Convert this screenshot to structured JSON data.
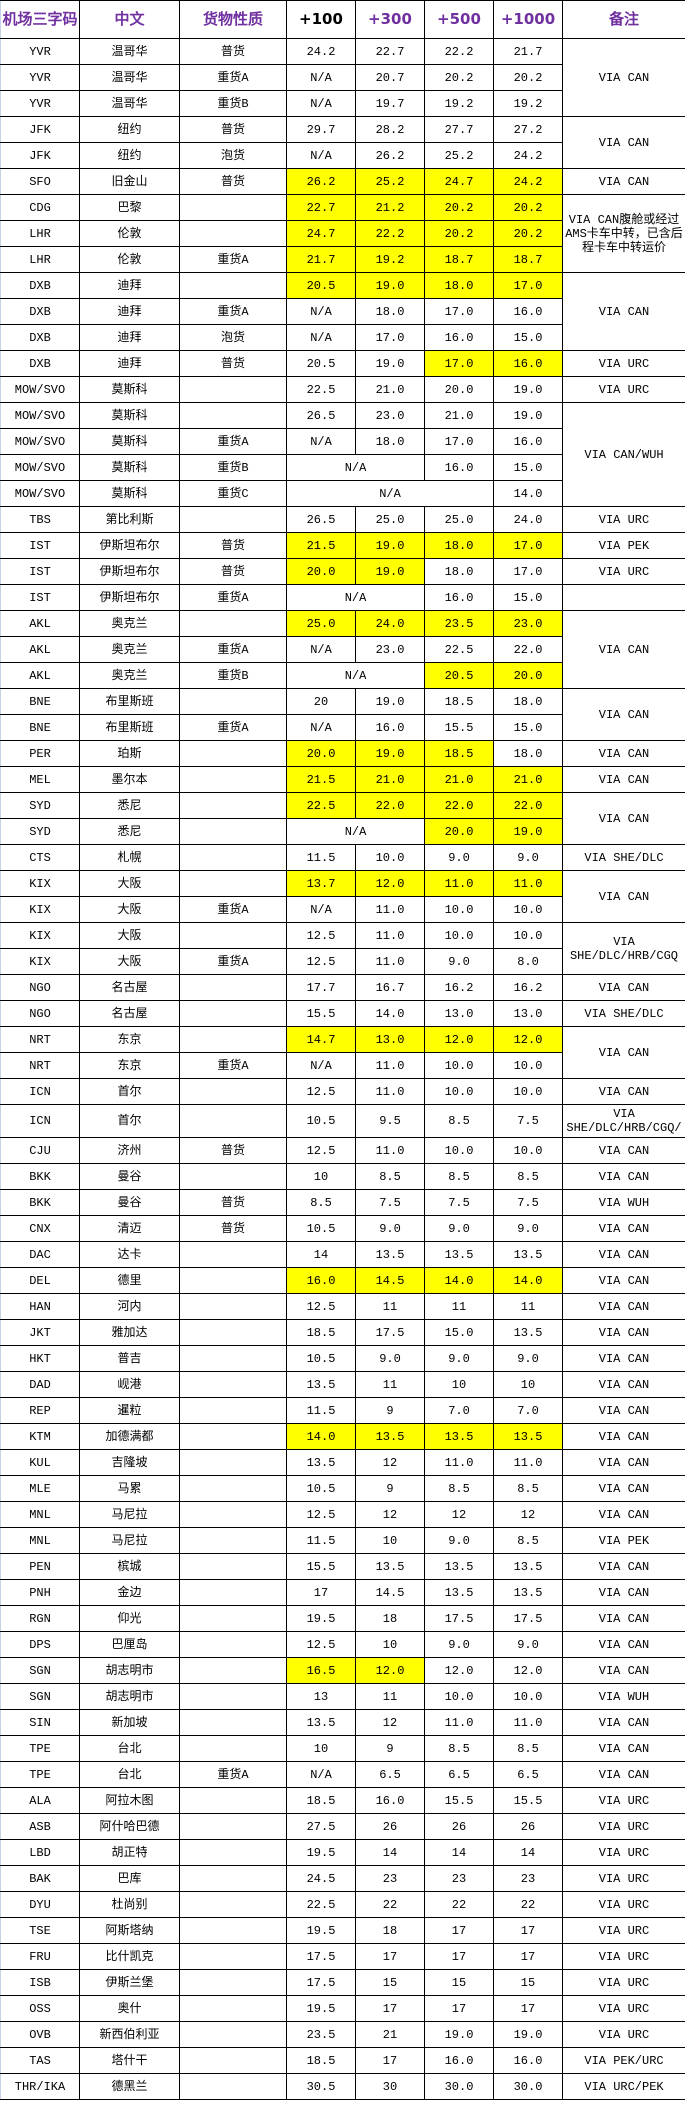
{
  "colors": {
    "header_text": "#7030A0",
    "highlight": "#ffff00"
  },
  "headers": [
    "机场三字码",
    "中文",
    "货物性质",
    "+100",
    "+300",
    "+500",
    "+1000",
    "备注"
  ],
  "rows": [
    {
      "code": "YVR",
      "city": "温哥华",
      "type": "普货",
      "p": [
        "24.2",
        "22.7",
        "22.2",
        "21.7"
      ],
      "hl": [],
      "note": "VIA CAN",
      "note_rows": 3
    },
    {
      "code": "YVR",
      "city": "温哥华",
      "type": "重货A",
      "p": [
        "N/A",
        "20.7",
        "20.2",
        "20.2"
      ],
      "hl": []
    },
    {
      "code": "YVR",
      "city": "温哥华",
      "type": "重货B",
      "p": [
        "N/A",
        "19.7",
        "19.2",
        "19.2"
      ],
      "hl": []
    },
    {
      "code": "JFK",
      "city": "纽约",
      "type": "普货",
      "p": [
        "29.7",
        "28.2",
        "27.7",
        "27.2"
      ],
      "hl": [],
      "note": "VIA CAN",
      "note_rows": 2
    },
    {
      "code": "JFK",
      "city": "纽约",
      "type": "泡货",
      "p": [
        "N/A",
        "26.2",
        "25.2",
        "24.2"
      ],
      "hl": []
    },
    {
      "code": "SFO",
      "city": "旧金山",
      "type": "普货",
      "p": [
        "26.2",
        "25.2",
        "24.7",
        "24.2"
      ],
      "hl": [
        0,
        1,
        2,
        3
      ],
      "note": "VIA CAN",
      "note_rows": 1
    },
    {
      "code": "CDG",
      "city": "巴黎",
      "type": "",
      "p": [
        "22.7",
        "21.2",
        "20.2",
        "20.2"
      ],
      "hl": [
        0,
        1,
        2,
        3
      ],
      "note": "VIA CAN腹舱或经过AMS卡车中转，已含后程卡车中转运价",
      "note_rows": 3
    },
    {
      "code": "LHR",
      "city": "伦敦",
      "type": "",
      "p": [
        "24.7",
        "22.2",
        "20.2",
        "20.2"
      ],
      "hl": [
        0,
        1,
        2,
        3
      ]
    },
    {
      "code": "LHR",
      "city": "伦敦",
      "type": "重货A",
      "p": [
        "21.7",
        "19.2",
        "18.7",
        "18.7"
      ],
      "hl": [
        0,
        1,
        2,
        3
      ]
    },
    {
      "code": "DXB",
      "city": "迪拜",
      "type": "",
      "p": [
        "20.5",
        "19.0",
        "18.0",
        "17.0"
      ],
      "hl": [
        0,
        1,
        2,
        3
      ],
      "note": "VIA CAN",
      "note_rows": 3
    },
    {
      "code": "DXB",
      "city": "迪拜",
      "type": "重货A",
      "p": [
        "N/A",
        "18.0",
        "17.0",
        "16.0"
      ],
      "hl": []
    },
    {
      "code": "DXB",
      "city": "迪拜",
      "type": "泡货",
      "p": [
        "N/A",
        "17.0",
        "16.0",
        "15.0"
      ],
      "hl": []
    },
    {
      "code": "DXB",
      "city": "迪拜",
      "type": "普货",
      "p": [
        "20.5",
        "19.0",
        "17.0",
        "16.0"
      ],
      "hl": [
        2,
        3
      ],
      "note": "VIA URC",
      "note_rows": 1
    },
    {
      "code": "MOW/SVO",
      "city": "莫斯科",
      "type": "",
      "p": [
        "22.5",
        "21.0",
        "20.0",
        "19.0"
      ],
      "hl": [],
      "note": "VIA URC",
      "note_rows": 1
    },
    {
      "code": "MOW/SVO",
      "city": "莫斯科",
      "type": "",
      "p": [
        "26.5",
        "23.0",
        "21.0",
        "19.0"
      ],
      "hl": [],
      "note": "VIA CAN/WUH",
      "note_rows": 4
    },
    {
      "code": "MOW/SVO",
      "city": "莫斯科",
      "type": "重货A",
      "p": [
        "N/A",
        "18.0",
        "17.0",
        "16.0"
      ],
      "hl": []
    },
    {
      "code": "MOW/SVO",
      "city": "莫斯科",
      "type": "重货B",
      "p": [
        [
          "N/A",
          2
        ],
        "16.0",
        "15.0"
      ],
      "hl": []
    },
    {
      "code": "MOW/SVO",
      "city": "莫斯科",
      "type": "重货C",
      "p": [
        [
          "N/A",
          3
        ],
        "14.0"
      ],
      "hl": []
    },
    {
      "code": "TBS",
      "city": "第比利斯",
      "type": "",
      "p": [
        "26.5",
        "25.0",
        "25.0",
        "24.0"
      ],
      "hl": [],
      "note": "VIA URC",
      "note_rows": 1
    },
    {
      "code": "IST",
      "city": "伊斯坦布尔",
      "type": "普货",
      "p": [
        "21.5",
        "19.0",
        "18.0",
        "17.0"
      ],
      "hl": [
        0,
        1,
        2,
        3
      ],
      "note": "VIA PEK",
      "note_rows": 1
    },
    {
      "code": "IST",
      "city": "伊斯坦布尔",
      "type": "普货",
      "p": [
        "20.0",
        "19.0",
        "18.0",
        "17.0"
      ],
      "hl": [
        0,
        1
      ],
      "note": "VIA URC",
      "note_rows": 1
    },
    {
      "code": "IST",
      "city": "伊斯坦布尔",
      "type": "重货A",
      "p": [
        [
          "N/A",
          2
        ],
        "16.0",
        "15.0"
      ],
      "hl": [],
      "note": "",
      "note_rows": 1
    },
    {
      "code": "AKL",
      "city": "奥克兰",
      "type": "",
      "p": [
        "25.0",
        "24.0",
        "23.5",
        "23.0"
      ],
      "hl": [
        0,
        1,
        2,
        3
      ],
      "note": "VIA CAN",
      "note_rows": 3
    },
    {
      "code": "AKL",
      "city": "奥克兰",
      "type": "重货A",
      "p": [
        "N/A",
        "23.0",
        "22.5",
        "22.0"
      ],
      "hl": []
    },
    {
      "code": "AKL",
      "city": "奥克兰",
      "type": "重货B",
      "p": [
        [
          "N/A",
          2
        ],
        "20.5",
        "20.0"
      ],
      "hl": [
        1,
        2
      ]
    },
    {
      "code": "BNE",
      "city": "布里斯班",
      "type": "",
      "p": [
        "20",
        "19.0",
        "18.5",
        "18.0"
      ],
      "hl": [],
      "note": "VIA CAN",
      "note_rows": 2
    },
    {
      "code": "BNE",
      "city": "布里斯班",
      "type": "重货A",
      "p": [
        "N/A",
        "16.0",
        "15.5",
        "15.0"
      ],
      "hl": []
    },
    {
      "code": "PER",
      "city": "珀斯",
      "type": "",
      "p": [
        "20.0",
        "19.0",
        "18.5",
        "18.0"
      ],
      "hl": [
        0,
        1,
        2
      ],
      "note": "VIA CAN",
      "note_rows": 1
    },
    {
      "code": "MEL",
      "city": "墨尔本",
      "type": "",
      "p": [
        "21.5",
        "21.0",
        "21.0",
        "21.0"
      ],
      "hl": [
        0,
        1,
        2,
        3
      ],
      "note": "VIA CAN",
      "note_rows": 1
    },
    {
      "code": "SYD",
      "city": "悉尼",
      "type": "",
      "p": [
        "22.5",
        "22.0",
        "22.0",
        "22.0"
      ],
      "hl": [
        0,
        1,
        2,
        3
      ],
      "note": "VIA CAN",
      "note_rows": 2
    },
    {
      "code": "SYD",
      "city": "悉尼",
      "type": "",
      "p": [
        [
          "N/A",
          2
        ],
        "20.0",
        "19.0"
      ],
      "hl": [
        1,
        2
      ]
    },
    {
      "code": "CTS",
      "city": "札幌",
      "type": "",
      "p": [
        "11.5",
        "10.0",
        "9.0",
        "9.0"
      ],
      "hl": [],
      "note": "VIA SHE/DLC",
      "note_rows": 1
    },
    {
      "code": "KIX",
      "city": "大阪",
      "type": "",
      "p": [
        "13.7",
        "12.0",
        "11.0",
        "11.0"
      ],
      "hl": [
        0,
        1,
        2,
        3
      ],
      "note": "VIA CAN",
      "note_rows": 2
    },
    {
      "code": "KIX",
      "city": "大阪",
      "type": "重货A",
      "p": [
        "N/A",
        "11.0",
        "10.0",
        "10.0"
      ],
      "hl": []
    },
    {
      "code": "KIX",
      "city": "大阪",
      "type": "",
      "p": [
        "12.5",
        "11.0",
        "10.0",
        "10.0"
      ],
      "hl": [],
      "note": "VIA SHE/DLC/HRB/CGQ",
      "note_rows": 2
    },
    {
      "code": "KIX",
      "city": "大阪",
      "type": "重货A",
      "p": [
        "12.5",
        "11.0",
        "9.0",
        "8.0"
      ],
      "hl": []
    },
    {
      "code": "NGO",
      "city": "名古屋",
      "type": "",
      "p": [
        "17.7",
        "16.7",
        "16.2",
        "16.2"
      ],
      "hl": [],
      "note": "VIA CAN",
      "note_rows": 1
    },
    {
      "code": "NGO",
      "city": "名古屋",
      "type": "",
      "p": [
        "15.5",
        "14.0",
        "13.0",
        "13.0"
      ],
      "hl": [],
      "note": "VIA SHE/DLC",
      "note_rows": 1
    },
    {
      "code": "NRT",
      "city": "东京",
      "type": "",
      "p": [
        "14.7",
        "13.0",
        "12.0",
        "12.0"
      ],
      "hl": [
        0,
        1,
        2,
        3
      ],
      "note": "VIA CAN",
      "note_rows": 2
    },
    {
      "code": "NRT",
      "city": "东京",
      "type": "重货A",
      "p": [
        "N/A",
        "11.0",
        "10.0",
        "10.0"
      ],
      "hl": []
    },
    {
      "code": "ICN",
      "city": "首尔",
      "type": "",
      "p": [
        "12.5",
        "11.0",
        "10.0",
        "10.0"
      ],
      "hl": [],
      "note": "VIA CAN",
      "note_rows": 1
    },
    {
      "code": "ICN",
      "city": "首尔",
      "type": "",
      "p": [
        "10.5",
        "9.5",
        "8.5",
        "7.5"
      ],
      "hl": [],
      "note": "VIA SHE/DLC/HRB/CGQ/",
      "note_rows": 1,
      "tall": true
    },
    {
      "code": "CJU",
      "city": "济州",
      "type": "普货",
      "p": [
        "12.5",
        "11.0",
        "10.0",
        "10.0"
      ],
      "hl": [],
      "note": "VIA CAN",
      "note_rows": 1
    },
    {
      "code": "BKK",
      "city": "曼谷",
      "type": "",
      "p": [
        "10",
        "8.5",
        "8.5",
        "8.5"
      ],
      "hl": [],
      "note": "VIA CAN",
      "note_rows": 1
    },
    {
      "code": "BKK",
      "city": "曼谷",
      "type": "普货",
      "p": [
        "8.5",
        "7.5",
        "7.5",
        "7.5"
      ],
      "hl": [],
      "note": "VIA WUH",
      "note_rows": 1
    },
    {
      "code": "CNX",
      "city": "清迈",
      "type": "普货",
      "p": [
        "10.5",
        "9.0",
        "9.0",
        "9.0"
      ],
      "hl": [],
      "note": "VIA CAN",
      "note_rows": 1
    },
    {
      "code": "DAC",
      "city": "达卡",
      "type": "",
      "p": [
        "14",
        "13.5",
        "13.5",
        "13.5"
      ],
      "hl": [],
      "note": "VIA CAN",
      "note_rows": 1
    },
    {
      "code": "DEL",
      "city": "德里",
      "type": "",
      "p": [
        "16.0",
        "14.5",
        "14.0",
        "14.0"
      ],
      "hl": [
        0,
        1,
        2,
        3
      ],
      "note": "VIA CAN",
      "note_rows": 1
    },
    {
      "code": "HAN",
      "city": "河内",
      "type": "",
      "p": [
        "12.5",
        "11",
        "11",
        "11"
      ],
      "hl": [],
      "note": "VIA CAN",
      "note_rows": 1
    },
    {
      "code": "JKT",
      "city": "雅加达",
      "type": "",
      "p": [
        "18.5",
        "17.5",
        "15.0",
        "13.5"
      ],
      "hl": [],
      "note": "VIA CAN",
      "note_rows": 1
    },
    {
      "code": "HKT",
      "city": "普吉",
      "type": "",
      "p": [
        "10.5",
        "9.0",
        "9.0",
        "9.0"
      ],
      "hl": [],
      "note": "VIA CAN",
      "note_rows": 1
    },
    {
      "code": "DAD",
      "city": "岘港",
      "type": "",
      "p": [
        "13.5",
        "11",
        "10",
        "10"
      ],
      "hl": [],
      "note": "VIA CAN",
      "note_rows": 1
    },
    {
      "code": "REP",
      "city": "暹粒",
      "type": "",
      "p": [
        "11.5",
        "9",
        "7.0",
        "7.0"
      ],
      "hl": [],
      "note": "VIA CAN",
      "note_rows": 1
    },
    {
      "code": "KTM",
      "city": "加德满都",
      "type": "",
      "p": [
        "14.0",
        "13.5",
        "13.5",
        "13.5"
      ],
      "hl": [
        0,
        1,
        2,
        3
      ],
      "note": "VIA CAN",
      "note_rows": 1
    },
    {
      "code": "KUL",
      "city": "吉隆坡",
      "type": "",
      "p": [
        "13.5",
        "12",
        "11.0",
        "11.0"
      ],
      "hl": [],
      "note": "VIA CAN",
      "note_rows": 1
    },
    {
      "code": "MLE",
      "city": "马累",
      "type": "",
      "p": [
        "10.5",
        "9",
        "8.5",
        "8.5"
      ],
      "hl": [],
      "note": "VIA CAN",
      "note_rows": 1
    },
    {
      "code": "MNL",
      "city": "马尼拉",
      "type": "",
      "p": [
        "12.5",
        "12",
        "12",
        "12"
      ],
      "hl": [],
      "note": "VIA CAN",
      "note_rows": 1
    },
    {
      "code": "MNL",
      "city": "马尼拉",
      "type": "",
      "p": [
        "11.5",
        "10",
        "9.0",
        "8.5"
      ],
      "hl": [],
      "note": "VIA PEK",
      "note_rows": 1
    },
    {
      "code": "PEN",
      "city": "槟城",
      "type": "",
      "p": [
        "15.5",
        "13.5",
        "13.5",
        "13.5"
      ],
      "hl": [],
      "note": "VIA CAN",
      "note_rows": 1
    },
    {
      "code": "PNH",
      "city": "金边",
      "type": "",
      "p": [
        "17",
        "14.5",
        "13.5",
        "13.5"
      ],
      "hl": [],
      "note": "VIA CAN",
      "note_rows": 1
    },
    {
      "code": "RGN",
      "city": "仰光",
      "type": "",
      "p": [
        "19.5",
        "18",
        "17.5",
        "17.5"
      ],
      "hl": [],
      "note": "VIA CAN",
      "note_rows": 1
    },
    {
      "code": "DPS",
      "city": "巴厘岛",
      "type": "",
      "p": [
        "12.5",
        "10",
        "9.0",
        "9.0"
      ],
      "hl": [],
      "note": "VIA CAN",
      "note_rows": 1
    },
    {
      "code": "SGN",
      "city": "胡志明市",
      "type": "",
      "p": [
        "16.5",
        "12.0",
        "12.0",
        "12.0"
      ],
      "hl": [
        0,
        1
      ],
      "note": "VIA CAN",
      "note_rows": 1
    },
    {
      "code": "SGN",
      "city": "胡志明市",
      "type": "",
      "p": [
        "13",
        "11",
        "10.0",
        "10.0"
      ],
      "hl": [],
      "note": "VIA WUH",
      "note_rows": 1
    },
    {
      "code": "SIN",
      "city": "新加坡",
      "type": "",
      "p": [
        "13.5",
        "12",
        "11.0",
        "11.0"
      ],
      "hl": [],
      "note": "VIA CAN",
      "note_rows": 1
    },
    {
      "code": "TPE",
      "city": "台北",
      "type": "",
      "p": [
        "10",
        "9",
        "8.5",
        "8.5"
      ],
      "hl": [],
      "note": "VIA CAN",
      "note_rows": 1
    },
    {
      "code": "TPE",
      "city": "台北",
      "type": "重货A",
      "p": [
        "N/A",
        "6.5",
        "6.5",
        "6.5"
      ],
      "hl": [],
      "note": "VIA CAN",
      "note_rows": 1
    },
    {
      "code": "ALA",
      "city": "阿拉木图",
      "type": "",
      "p": [
        "18.5",
        "16.0",
        "15.5",
        "15.5"
      ],
      "hl": [],
      "note": "VIA URC",
      "note_rows": 1
    },
    {
      "code": "ASB",
      "city": "阿什哈巴德",
      "type": "",
      "p": [
        "27.5",
        "26",
        "26",
        "26"
      ],
      "hl": [],
      "note": "VIA URC",
      "note_rows": 1
    },
    {
      "code": "LBD",
      "city": "胡正特",
      "type": "",
      "p": [
        "19.5",
        "14",
        "14",
        "14"
      ],
      "hl": [],
      "note": "VIA URC",
      "note_rows": 1
    },
    {
      "code": "BAK",
      "city": "巴库",
      "type": "",
      "p": [
        "24.5",
        "23",
        "23",
        "23"
      ],
      "hl": [],
      "note": "VIA URC",
      "note_rows": 1
    },
    {
      "code": "DYU",
      "city": "杜尚别",
      "type": "",
      "p": [
        "22.5",
        "22",
        "22",
        "22"
      ],
      "hl": [],
      "note": "VIA URC",
      "note_rows": 1
    },
    {
      "code": "TSE",
      "city": "阿斯塔纳",
      "type": "",
      "p": [
        "19.5",
        "18",
        "17",
        "17"
      ],
      "hl": [],
      "note": "VIA URC",
      "note_rows": 1
    },
    {
      "code": "FRU",
      "city": "比什凯克",
      "type": "",
      "p": [
        "17.5",
        "17",
        "17",
        "17"
      ],
      "hl": [],
      "note": "VIA URC",
      "note_rows": 1
    },
    {
      "code": "ISB",
      "city": "伊斯兰堡",
      "type": "",
      "p": [
        "17.5",
        "15",
        "15",
        "15"
      ],
      "hl": [],
      "note": "VIA URC",
      "note_rows": 1
    },
    {
      "code": "OSS",
      "city": "奥什",
      "type": "",
      "p": [
        "19.5",
        "17",
        "17",
        "17"
      ],
      "hl": [],
      "note": "VIA URC",
      "note_rows": 1
    },
    {
      "code": "OVB",
      "city": "新西伯利亚",
      "type": "",
      "p": [
        "23.5",
        "21",
        "19.0",
        "19.0"
      ],
      "hl": [],
      "note": "VIA URC",
      "note_rows": 1
    },
    {
      "code": "TAS",
      "city": "塔什干",
      "type": "",
      "p": [
        "18.5",
        "17",
        "16.0",
        "16.0"
      ],
      "hl": [],
      "note": "VIA PEK/URC",
      "note_rows": 1
    },
    {
      "code": "THR/IKA",
      "city": "德黑兰",
      "type": "",
      "p": [
        "30.5",
        "30",
        "30.0",
        "30.0"
      ],
      "hl": [],
      "note": "VIA URC/PEK",
      "note_rows": 1
    }
  ]
}
